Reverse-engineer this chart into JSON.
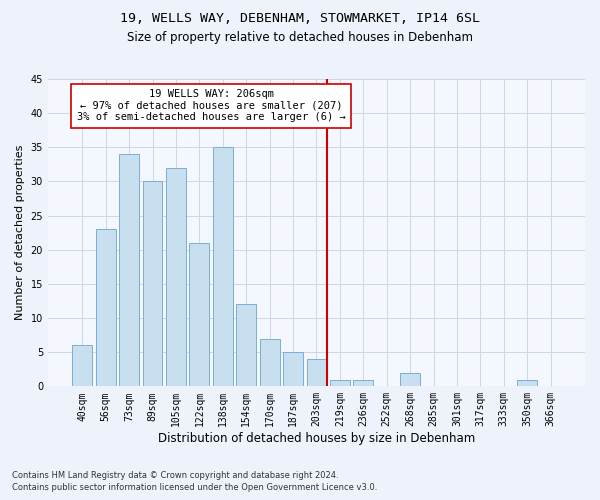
{
  "title1": "19, WELLS WAY, DEBENHAM, STOWMARKET, IP14 6SL",
  "title2": "Size of property relative to detached houses in Debenham",
  "xlabel": "Distribution of detached houses by size in Debenham",
  "ylabel": "Number of detached properties",
  "bar_labels": [
    "40sqm",
    "56sqm",
    "73sqm",
    "89sqm",
    "105sqm",
    "122sqm",
    "138sqm",
    "154sqm",
    "170sqm",
    "187sqm",
    "203sqm",
    "219sqm",
    "236sqm",
    "252sqm",
    "268sqm",
    "285sqm",
    "301sqm",
    "317sqm",
    "333sqm",
    "350sqm",
    "366sqm"
  ],
  "bar_values": [
    6,
    23,
    34,
    30,
    32,
    21,
    35,
    12,
    7,
    5,
    4,
    1,
    1,
    0,
    2,
    0,
    0,
    0,
    0,
    1,
    0
  ],
  "bar_color": "#c8dff0",
  "bar_edge_color": "#7aafd4",
  "vline_x_idx": 10,
  "vline_color": "#cc0000",
  "annotation_text": "19 WELLS WAY: 206sqm\n← 97% of detached houses are smaller (207)\n3% of semi-detached houses are larger (6) →",
  "annotation_box_color": "#ffffff",
  "annotation_box_edge": "#cc0000",
  "ylim": [
    0,
    45
  ],
  "yticks": [
    0,
    5,
    10,
    15,
    20,
    25,
    30,
    35,
    40,
    45
  ],
  "footer1": "Contains HM Land Registry data © Crown copyright and database right 2024.",
  "footer2": "Contains public sector information licensed under the Open Government Licence v3.0.",
  "bg_color": "#eef2fa",
  "plot_bg_color": "#f4f7fd",
  "grid_color": "#d0d4e8",
  "title1_fontsize": 9.5,
  "title2_fontsize": 8.5,
  "ylabel_fontsize": 8,
  "xlabel_fontsize": 8.5,
  "tick_fontsize": 7,
  "footer_fontsize": 6,
  "annot_fontsize": 7.5
}
